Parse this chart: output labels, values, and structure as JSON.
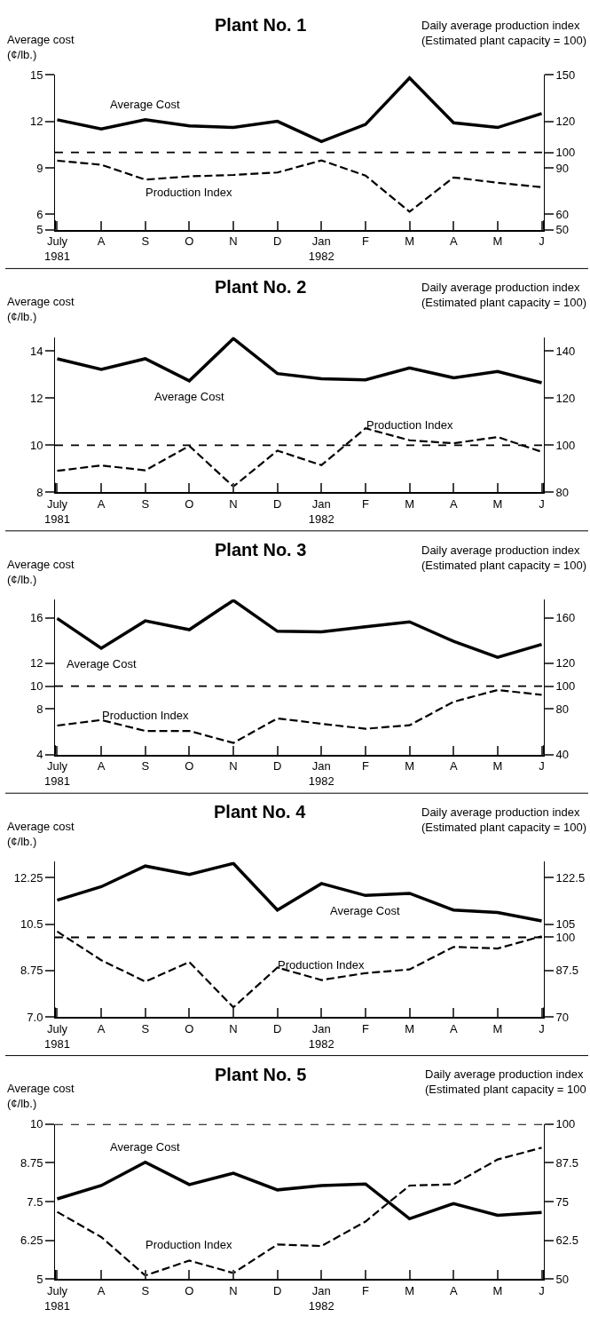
{
  "chart_data": [
    {
      "type": "line",
      "title": "Plant No. 1",
      "ylabel": "Average cost\n(¢/lb.)",
      "y2label": "Daily average production index\n(Estimated plant capacity = 100)",
      "categories": [
        "July\n1981",
        "A",
        "S",
        "O",
        "N",
        "D",
        "Jan\n1982",
        "F",
        "M",
        "A",
        "M",
        "J"
      ],
      "ylim": [
        5,
        15
      ],
      "yticks": [
        5,
        6,
        9,
        12,
        15
      ],
      "y2lim": [
        50,
        150
      ],
      "y2ticks": [
        50,
        60,
        90,
        100,
        120,
        150
      ],
      "legend": false,
      "grid": false,
      "series": [
        {
          "name": "Average Cost",
          "color": "#000000",
          "line_style": "solid",
          "values": [
            12.1,
            11.5,
            12.1,
            11.7,
            11.6,
            12.0,
            10.7,
            11.8,
            14.8,
            11.9,
            11.6,
            12.5
          ]
        },
        {
          "name": "Production Index",
          "color": "#000000",
          "line_style": "dashed",
          "axis": "y2",
          "values": [
            94.6,
            92,
            82.4,
            84.5,
            85.4,
            87,
            94.8,
            85,
            61.7,
            83.8,
            80.4,
            77.5
          ]
        }
      ],
      "ref_lines": [
        {
          "axis": "y2",
          "value": 100,
          "line_style": "dashed",
          "color": "#000000"
        }
      ]
    },
    {
      "type": "line",
      "title": "Plant No. 2",
      "ylabel": "Average cost\n(¢/lb.)",
      "y2label": "Daily average production index\n(Estimated plant capacity = 100)",
      "categories": [
        "July\n1981",
        "A",
        "S",
        "O",
        "N",
        "D",
        "Jan\n1982",
        "F",
        "M",
        "A",
        "M",
        "J"
      ],
      "ylim": [
        8,
        14.6
      ],
      "yticks": [
        8,
        10,
        12,
        14
      ],
      "y2lim": [
        80,
        146
      ],
      "y2ticks": [
        80,
        100,
        120,
        140
      ],
      "legend": false,
      "grid": false,
      "series": [
        {
          "name": "Average Cost",
          "color": "#000000",
          "line_style": "solid",
          "values": [
            13.68,
            13.23,
            13.68,
            12.74,
            14.54,
            13.05,
            12.83,
            12.78,
            13.29,
            12.87,
            13.14,
            12.66
          ]
        },
        {
          "name": "Production Index",
          "color": "#000000",
          "line_style": "dashed",
          "axis": "y2",
          "values": [
            89.1,
            91.4,
            89.3,
            99.7,
            82.4,
            97.7,
            91.5,
            107.2,
            102.1,
            100.8,
            103.5,
            97.2
          ]
        }
      ],
      "ref_lines": [
        {
          "axis": "y2",
          "value": 100,
          "line_style": "dashed",
          "color": "#000000"
        }
      ]
    },
    {
      "type": "line",
      "title": "Plant No. 3",
      "ylabel": "Average cost\n(¢/lb.)",
      "y2label": "Daily average production index\n(Estimated plant capacity = 100)",
      "categories": [
        "July\n1981",
        "A",
        "S",
        "O",
        "N",
        "D",
        "Jan\n1982",
        "F",
        "M",
        "A",
        "M",
        "J"
      ],
      "ylim": [
        4,
        17.6
      ],
      "yticks": [
        4,
        8,
        10,
        12,
        16
      ],
      "y2lim": [
        40,
        176
      ],
      "y2ticks": [
        40,
        80,
        100,
        120,
        160
      ],
      "legend": false,
      "grid": false,
      "series": [
        {
          "name": "Average Cost",
          "color": "#000000",
          "line_style": "solid",
          "values": [
            15.94,
            13.32,
            15.72,
            14.95,
            17.52,
            14.81,
            14.76,
            15.2,
            15.64,
            13.93,
            12.52,
            13.66
          ]
        },
        {
          "name": "Production Index",
          "color": "#000000",
          "line_style": "dashed",
          "axis": "y2",
          "values": [
            65.4,
            70.3,
            60.7,
            60.7,
            50.2,
            71.7,
            67,
            62.6,
            65.7,
            86.3,
            96.6,
            92.4
          ]
        }
      ],
      "ref_lines": [
        {
          "axis": "y2",
          "value": 100,
          "line_style": "dashed",
          "color": "#000000"
        }
      ]
    },
    {
      "type": "line",
      "title": "Plant No. 4",
      "ylabel": "Average cost\n(¢/lb.)",
      "y2label": "Daily average production index\n(Estimated plant capacity = 100)",
      "categories": [
        "July\n1981",
        "A",
        "S",
        "O",
        "N",
        "D",
        "Jan\n1982",
        "F",
        "M",
        "A",
        "M",
        "J"
      ],
      "ylim": [
        7,
        12.85
      ],
      "yticks": [
        {
          "value": 7,
          "label": "7.0"
        },
        8.75,
        10.5,
        12.25
      ],
      "y2lim": [
        70,
        128.5
      ],
      "y2ticks": [
        70,
        87.5,
        100,
        105,
        122.5
      ],
      "legend": false,
      "grid": false,
      "series": [
        {
          "name": "Average Cost",
          "color": "#000000",
          "line_style": "solid",
          "values": [
            11.4,
            11.91,
            12.69,
            12.37,
            12.79,
            11.03,
            12.03,
            11.58,
            11.66,
            11.03,
            10.94,
            10.62
          ]
        },
        {
          "name": "Production Index",
          "color": "#000000",
          "line_style": "dashed",
          "axis": "y2",
          "values": [
            102.2,
            91.4,
            83.3,
            90.7,
            73.6,
            88.6,
            83.9,
            86.5,
            87.9,
            96.4,
            95.8,
            100.4
          ]
        }
      ],
      "ref_lines": [
        {
          "axis": "y2",
          "value": 100,
          "line_style": "dashed",
          "color": "#000000"
        }
      ]
    },
    {
      "type": "line",
      "title": "Plant No. 5",
      "ylabel": "Average cost\n(¢/lb.)",
      "y2label": "Daily average production index\n(Estimated plant capacity = 100",
      "categories": [
        "July\n1981",
        "A",
        "S",
        "O",
        "N",
        "D",
        "Jan\n1982",
        "F",
        "M",
        "A",
        "M",
        "J"
      ],
      "ylim": [
        5,
        10
      ],
      "yticks": [
        5,
        6.25,
        7.5,
        8.75,
        10
      ],
      "y2lim": [
        50,
        100
      ],
      "y2ticks": [
        50,
        62.5,
        75,
        87.5,
        100
      ],
      "legend": false,
      "grid": false,
      "series": [
        {
          "name": "Average Cost",
          "color": "#000000",
          "line_style": "solid",
          "values": [
            7.59,
            8.02,
            8.77,
            8.05,
            8.42,
            7.88,
            8.02,
            8.07,
            6.95,
            7.44,
            7.06,
            7.15
          ]
        },
        {
          "name": "Production Index",
          "color": "#000000",
          "line_style": "dashed",
          "axis": "y2",
          "values": [
            71.7,
            63.6,
            51.2,
            56,
            52,
            61.2,
            60.7,
            68.6,
            80.2,
            80.6,
            88.6,
            92.4
          ]
        }
      ],
      "ref_lines": [
        {
          "axis": "y2",
          "value": 100,
          "line_style": "dashed",
          "color": "#000000"
        }
      ]
    }
  ]
}
